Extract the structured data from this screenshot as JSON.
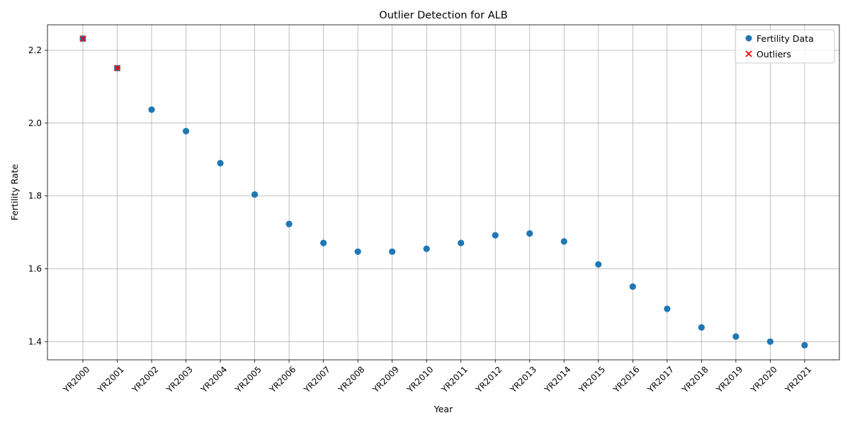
{
  "chart_data": {
    "type": "scatter",
    "title": "Outlier Detection for ALB",
    "xlabel": "Year",
    "ylabel": "Fertility Rate",
    "categories": [
      "YR2000",
      "YR2001",
      "YR2002",
      "YR2003",
      "YR2004",
      "YR2005",
      "YR2006",
      "YR2007",
      "YR2008",
      "YR2009",
      "YR2010",
      "YR2011",
      "YR2012",
      "YR2013",
      "YR2014",
      "YR2015",
      "YR2016",
      "YR2017",
      "YR2018",
      "YR2019",
      "YR2020",
      "YR2021"
    ],
    "ylim": [
      1.35,
      2.27
    ],
    "yticks": [
      1.4,
      1.6,
      1.8,
      2.0,
      2.2
    ],
    "ytick_labels": [
      "1.4",
      "1.6",
      "1.8",
      "2.0",
      "2.2"
    ],
    "grid": true,
    "legend_position": "top-right",
    "series": [
      {
        "name": "Fertility Data",
        "marker": "circle",
        "color": "#1f77b4",
        "values": [
          2.232,
          2.151,
          2.037,
          1.978,
          1.89,
          1.804,
          1.723,
          1.671,
          1.647,
          1.647,
          1.655,
          1.671,
          1.692,
          1.697,
          1.675,
          1.612,
          1.551,
          1.49,
          1.439,
          1.414,
          1.4,
          1.39
        ]
      },
      {
        "name": "Outliers",
        "marker": "x",
        "color": "#ff0000",
        "points": [
          {
            "category": "YR2000",
            "value": 2.232
          },
          {
            "category": "YR2001",
            "value": 2.151
          }
        ]
      }
    ]
  }
}
